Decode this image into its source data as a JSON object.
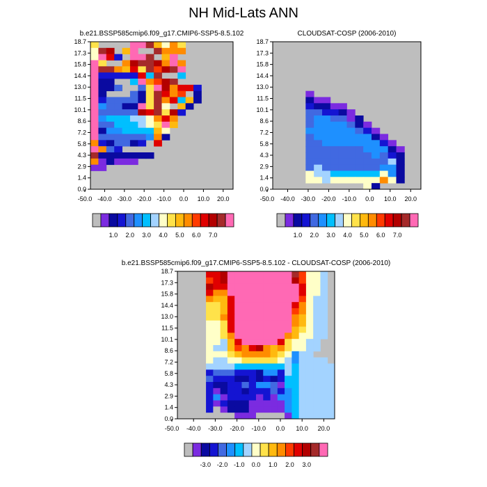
{
  "figure_title": "NH Mid-Lats ANN",
  "colors": {
    "abs_scale": [
      "#bdbdbd",
      "#7b2be0",
      "#0a0aa0",
      "#1414d2",
      "#4169e1",
      "#1e90ff",
      "#00bfff",
      "#a3d3ff",
      "#ffffc8",
      "#ffe24a",
      "#ffb90f",
      "#ff8c00",
      "#ff3a00",
      "#e00000",
      "#b30000",
      "#a52a2a",
      "#ff69b4"
    ],
    "diff_scale": [
      "#bdbdbd",
      "#7b2be0",
      "#0a0aa0",
      "#1414d2",
      "#4169e1",
      "#1e90ff",
      "#00bfff",
      "#a3d3ff",
      "#ffffc8",
      "#ffe24a",
      "#ffb90f",
      "#ff8c00",
      "#ff3a00",
      "#e00000",
      "#b30000",
      "#a52a2a",
      "#ff69b4"
    ],
    "missing": "#bebebe"
  },
  "chart_data": [
    {
      "type": "heatmap",
      "title": "b.e21.BSSP585cmip6.f09_g17.CMIP6-SSP5-8.5.102",
      "x_ticks": [
        "-50.0",
        "-40.0",
        "-30.0",
        "-20.0",
        "-10.0",
        "0.0",
        "10.0",
        "20.0"
      ],
      "y_ticks": [
        "0.0",
        "1.4",
        "2.9",
        "4.3",
        "5.8",
        "7.2",
        "8.6",
        "10.1",
        "11.5",
        "13.0",
        "14.4",
        "15.8",
        "17.3",
        "18.7"
      ],
      "colorbar_labels": [
        "1.0",
        "2.0",
        "3.0",
        "4.0",
        "5.0",
        "6.0",
        "7.0"
      ],
      "grid_rows_top_to_bottom": [
        "9....GGFA8B9......",
        "8FE.AG..FBBB......",
        "8HD3.GGF.AG.......",
        "G9..BEFFEBGB......",
        "GFFBAD9FCEFG......",
        "G33333D6F..6......",
        "G22..6GBCEF.......",
        "G224..49GEBDD3....",
        "G2...429FDBC.2....",
        "G3444429FBD6A2....",
        "G54422G9F8.A2.....",
        "G44444EDF9E3......",
        "G5666778BDB.......",
        "G44666789GA.......",
        "G2556666A8........",
        "G4444445B2........",
        "B324423.D.........",
        "GB43..............",
        "F2222222..........",
        "B12111............",
        "11................",
        "..................",
        "..................",
        ".................."
      ]
    },
    {
      "type": "heatmap",
      "title": "CLOUDSAT-COSP (2006-2010)",
      "x_ticks": [
        "-50.0",
        "-40.0",
        "-30.0",
        "-20.0",
        "-10.0",
        "0.0",
        "10.0",
        "20.0"
      ],
      "y_ticks": [
        "0.0",
        "1.4",
        "2.9",
        "4.3",
        "5.8",
        "7.2",
        "8.6",
        "10.1",
        "11.5",
        "13.0",
        "14.4",
        "15.8",
        "17.3",
        "18.7"
      ],
      "colorbar_labels": [
        "1.0",
        "2.0",
        "3.0",
        "4.0",
        "5.0",
        "6.0",
        "7.0"
      ],
      "grid_rows_top_to_bottom": [
        "..................",
        "..................",
        "..................",
        "..................",
        "..................",
        "..................",
        "..................",
        "..................",
        "....1.............",
        "....211...........",
        "....32211.........",
        "....443321........",
        "....4554412.......",
        "....45555421......",
        "....555555431.....",
        "....4555555521....",
        "....44555555531...",
        "....444444455521..",
        "....444444445432..",
        "....444444444472..",
        "....474444444552..",
        "....877666666852..",
        "....887888888B82..",
        "...........82....."
      ]
    },
    {
      "type": "heatmap",
      "title": "b.e21.BSSP585cmip6.f09_g17.CMIP6-SSP5-8.5.102 - CLOUDSAT-COSP (2006-2010)",
      "x_ticks": [
        "-50.0",
        "-40.0",
        "-30.0",
        "-20.0",
        "-10.0",
        "0.0",
        "10.0",
        "20.0"
      ],
      "y_ticks": [
        "0.0",
        "1.4",
        "2.9",
        "4.3",
        "5.8",
        "7.2",
        "8.6",
        "10.1",
        "11.5",
        "13.0",
        "14.4",
        "15.8",
        "17.3",
        "18.7"
      ],
      "colorbar_labels": [
        "-3.0",
        "-2.0",
        "-1.0",
        "0.0",
        "1.0",
        "2.0",
        "3.0"
      ],
      "grid_rows_top_to_bottom": [
        "....DDEGGGGGGGGGFC887",
        "....CDEGGGGGGGGGEC887",
        "....EDDGGGGGGGGGGD887",
        "....DBBGGGGGGGGGGD887",
        "....BAADGGGGGGGGGC877",
        "....99ADGGGGGGGGDB877",
        "....99ADGGGGGGGGCB877",
        "....99BDGGGGGGGGBA877",
        "....889DGGGGGGGGBA877",
        "....889DGGGGGGGGA9877",
        "....889BGGGGGGGBA8877",
        "....887ADGGGGGD98877",
        "....877ACBDEBAB98877",
        "....8889ABBBBA98577",
        "....87788999998757777",
        "....777766666667677777",
        "....344433325537677777",
        "....433322323236677777",
        "....322334355416677777",
        "....312332333435677777",
        "....351333313155677777",
        "....313222111115677777",
        "....301222111115677777",
        "....000011100001677777"
      ]
    }
  ]
}
